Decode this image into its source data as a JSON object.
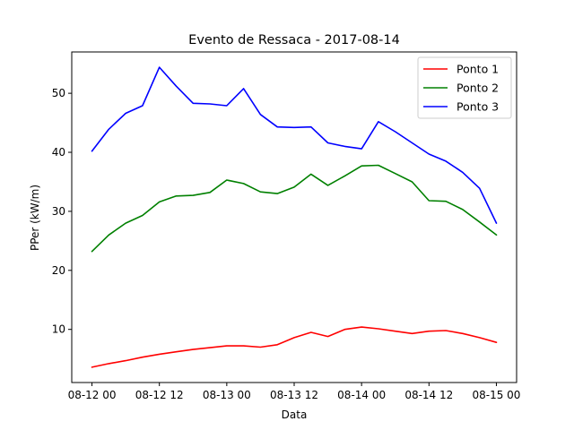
{
  "chart_data": {
    "type": "line",
    "title": "Evento de Ressaca - 2017-08-14",
    "xlabel": "Data",
    "ylabel": "PPer (kW/m)",
    "xlim": [
      "2017-08-12 00:00",
      "2017-08-15 00:00"
    ],
    "ylim": [
      1,
      57
    ],
    "x_ticks": [
      {
        "value": "2017-08-12 00:00",
        "label": "08-12 00"
      },
      {
        "value": "2017-08-12 12:00",
        "label": "08-12 12"
      },
      {
        "value": "2017-08-13 00:00",
        "label": "08-13 00"
      },
      {
        "value": "2017-08-13 12:00",
        "label": "08-13 12"
      },
      {
        "value": "2017-08-14 00:00",
        "label": "08-14 00"
      },
      {
        "value": "2017-08-14 12:00",
        "label": "08-14 12"
      },
      {
        "value": "2017-08-15 00:00",
        "label": "08-15 00"
      }
    ],
    "y_ticks": [
      10,
      20,
      30,
      40,
      50
    ],
    "grid": false,
    "legend_position": "top-right",
    "x": [
      "2017-08-12 00:00",
      "2017-08-12 03:00",
      "2017-08-12 06:00",
      "2017-08-12 09:00",
      "2017-08-12 12:00",
      "2017-08-12 15:00",
      "2017-08-12 18:00",
      "2017-08-12 21:00",
      "2017-08-13 00:00",
      "2017-08-13 03:00",
      "2017-08-13 06:00",
      "2017-08-13 09:00",
      "2017-08-13 12:00",
      "2017-08-13 15:00",
      "2017-08-13 18:00",
      "2017-08-13 21:00",
      "2017-08-14 00:00",
      "2017-08-14 03:00",
      "2017-08-14 06:00",
      "2017-08-14 09:00",
      "2017-08-14 12:00",
      "2017-08-14 15:00",
      "2017-08-14 18:00",
      "2017-08-14 21:00",
      "2017-08-15 00:00"
    ],
    "series": [
      {
        "name": "Ponto 1",
        "color": "#ff0000",
        "values": [
          3.6,
          4.2,
          4.7,
          5.3,
          5.8,
          6.2,
          6.6,
          6.9,
          7.2,
          7.2,
          7.0,
          7.4,
          8.6,
          9.5,
          8.8,
          10.0,
          10.4,
          10.1,
          9.7,
          9.3,
          9.7,
          9.8,
          9.3,
          8.6,
          7.8
        ]
      },
      {
        "name": "Ponto 2",
        "color": "#008000",
        "values": [
          23.2,
          26.0,
          28.0,
          29.3,
          31.6,
          32.6,
          32.7,
          33.2,
          35.3,
          34.7,
          33.3,
          33.0,
          34.1,
          36.3,
          34.4,
          36.0,
          37.7,
          37.8,
          36.4,
          35.0,
          31.8,
          31.7,
          30.3,
          28.2,
          26.0
        ]
      },
      {
        "name": "Ponto 3",
        "color": "#0000ff",
        "values": [
          40.2,
          43.9,
          46.6,
          47.9,
          54.4,
          51.2,
          48.3,
          48.2,
          47.9,
          50.8,
          46.4,
          44.3,
          44.2,
          44.3,
          41.6,
          41.0,
          40.6,
          45.2,
          43.5,
          41.6,
          39.7,
          38.5,
          36.6,
          33.9,
          28.0
        ]
      }
    ]
  }
}
